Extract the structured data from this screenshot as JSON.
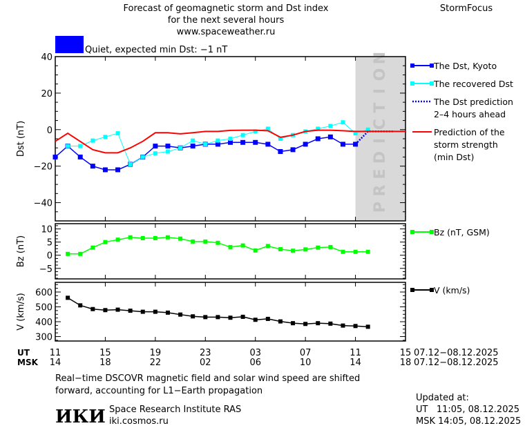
{
  "header": {
    "title_lines": [
      "Forecast of geomagnetic storm and Dst index",
      "for the next several hours",
      "www.spaceweather.ru"
    ],
    "brand": "StormFocus",
    "status_color": "#0000ff",
    "status_text": "Quiet, expected min Dst: −1 nT"
  },
  "chart_data": [
    {
      "type": "line",
      "ylabel": "Dst (nT)",
      "ylim": [
        -50,
        40
      ],
      "yticks": [
        40,
        20,
        0,
        -20,
        -40
      ],
      "xlim": [
        0,
        28
      ],
      "prediction_label": "PREDICTION",
      "prediction_range": [
        24,
        28
      ],
      "series": [
        {
          "name": "The Dst, Kyoto",
          "color": "#0000ff",
          "x": [
            0,
            1,
            2,
            3,
            4,
            5,
            6,
            7,
            8,
            9,
            10,
            11,
            12,
            13,
            14,
            15,
            16,
            17,
            18,
            19,
            20,
            21,
            22,
            23,
            24
          ],
          "values": [
            -15,
            -9,
            -15,
            -20,
            -22,
            -22,
            -19,
            -15,
            -9,
            -9,
            -10,
            -9,
            -8,
            -8,
            -7,
            -7,
            -7,
            -8,
            -12,
            -11,
            -8,
            -5,
            -4,
            -8,
            -8
          ]
        },
        {
          "name": "The recovered Dst",
          "color": "#00ffff",
          "x": [
            1,
            2,
            3,
            4,
            5,
            6,
            7,
            8,
            9,
            10,
            11,
            12,
            13,
            14,
            15,
            16,
            17,
            18,
            19,
            20,
            21,
            22,
            23,
            24,
            25
          ],
          "values": [
            -9,
            -9,
            -6,
            -4,
            -2,
            -19,
            -15,
            -13,
            -12,
            -10,
            -6,
            -8,
            -6,
            -5,
            -3,
            -1,
            0.5,
            -5,
            -3,
            -1,
            0.5,
            2,
            4,
            -2,
            0
          ]
        },
        {
          "name": "The Dst prediction 2–4 hours ahead",
          "color": "#0000ff",
          "x": [
            24,
            25,
            27
          ],
          "values": [
            -8,
            -1,
            -1
          ]
        },
        {
          "name": "Prediction of the storm strength (min Dst)",
          "color": "#ff0000",
          "x": [
            0,
            1,
            3,
            4,
            5,
            6,
            7,
            8,
            9,
            10,
            11,
            12,
            13,
            14,
            15,
            16,
            17,
            18,
            19,
            20,
            21,
            22,
            23,
            24,
            28
          ],
          "values": [
            -6.4,
            -2,
            -11,
            -12.7,
            -12.7,
            -10,
            -6.4,
            -1.7,
            -1.7,
            -2.3,
            -1.7,
            -1,
            -1,
            -0.4,
            -0.3,
            -0.3,
            -0.6,
            -4.2,
            -3,
            -1,
            -0.3,
            -0.3,
            -0.6,
            -1,
            -1
          ]
        }
      ]
    },
    {
      "type": "line",
      "ylabel": "Bz (nT)",
      "ylim": [
        -9,
        12
      ],
      "yticks": [
        10,
        5,
        0,
        -5
      ],
      "series": [
        {
          "name": "Bz (nT, GSM)",
          "color": "#00ff00",
          "x": [
            1,
            2,
            3,
            4,
            5,
            6,
            7,
            8,
            9,
            10,
            11,
            12,
            13,
            14,
            15,
            16,
            17,
            18,
            19,
            20,
            21,
            22,
            23,
            24,
            25
          ],
          "values": [
            0.5,
            0.5,
            2.9,
            5.0,
            5.9,
            6.8,
            6.5,
            6.5,
            6.8,
            6.3,
            5.2,
            5.2,
            4.7,
            3.1,
            3.7,
            1.8,
            3.5,
            2.3,
            1.7,
            2.2,
            2.9,
            3.1,
            1.3,
            1.3,
            1.3
          ]
        }
      ]
    },
    {
      "type": "line",
      "ylabel": "V (km/s)",
      "ylim": [
        270,
        665
      ],
      "yticks": [
        600,
        500,
        400,
        300
      ],
      "series": [
        {
          "name": "V (km/s)",
          "color": "#000000",
          "x": [
            1,
            2,
            3,
            4,
            5,
            6,
            7,
            8,
            9,
            10,
            11,
            12,
            13,
            14,
            15,
            16,
            17,
            18,
            19,
            20,
            21,
            22,
            23,
            24,
            25
          ],
          "values": [
            561,
            510,
            485,
            478,
            481,
            474,
            467,
            467,
            461,
            448,
            436,
            431,
            431,
            427,
            433,
            413,
            419,
            402,
            390,
            385,
            390,
            387,
            374,
            371,
            366
          ]
        }
      ]
    }
  ],
  "axis": {
    "ut_label": "UT",
    "msk_label": "MSK",
    "ut_ticks": [
      "11",
      "15",
      "19",
      "23",
      "03",
      "07",
      "11",
      "15"
    ],
    "msk_ticks": [
      "14",
      "18",
      "22",
      "02",
      "06",
      "10",
      "14",
      "18"
    ],
    "ut_dates": "07.12−08.12.2025",
    "msk_dates": "07.12−08.12.2025"
  },
  "footer": {
    "note_lines": [
      "Real−time DSCOVR magnetic field and solar wind speed are shifted",
      "forward, accounting for L1−Earth propagation"
    ],
    "logo": "ИКИ",
    "institute": "Space Research Institute RAS",
    "site": "iki.cosmos.ru",
    "updated_label": "Updated at:",
    "updated_ut": "UT   11:05, 08.12.2025",
    "updated_msk": "MSK 14:05, 08.12.2025"
  }
}
